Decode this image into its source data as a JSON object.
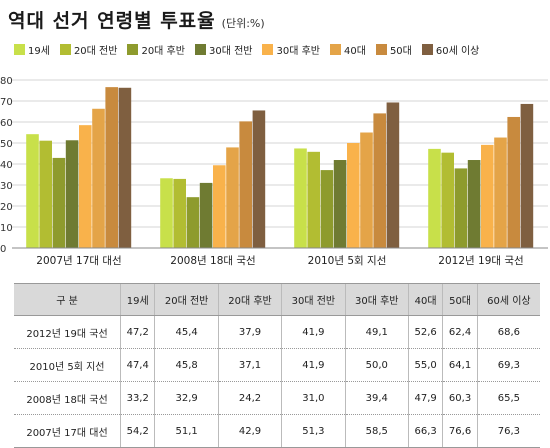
{
  "title": "역대 선거 연령별 투표율",
  "unit": "(단위:%)",
  "colors": [
    "#c8e04a",
    "#b2bd32",
    "#8e9b2d",
    "#6f7b32",
    "#f9b24b",
    "#e4a448",
    "#c88a3e",
    "#7f5f40"
  ],
  "chart_data": {
    "type": "bar",
    "title": "역대 선거 연령별 투표율",
    "categories": [
      "2007년 17대 대선",
      "2008년 18대 국선",
      "2010년 5회 지선",
      "2012년 19대 국선"
    ],
    "series": [
      {
        "name": "19세",
        "values": [
          54.2,
          33.2,
          47.4,
          47.2
        ]
      },
      {
        "name": "20대 전반",
        "values": [
          51.1,
          32.9,
          45.8,
          45.4
        ]
      },
      {
        "name": "20대 후반",
        "values": [
          42.9,
          24.2,
          37.1,
          37.9
        ]
      },
      {
        "name": "30대 전반",
        "values": [
          51.3,
          31.0,
          41.9,
          41.9
        ]
      },
      {
        "name": "30대 후반",
        "values": [
          58.5,
          39.4,
          50.0,
          49.1
        ]
      },
      {
        "name": "40대",
        "values": [
          66.3,
          47.9,
          55.0,
          52.6
        ]
      },
      {
        "name": "50대",
        "values": [
          76.6,
          60.3,
          64.1,
          62.4
        ]
      },
      {
        "name": "60세 이상",
        "values": [
          76.3,
          65.5,
          69.3,
          68.6
        ]
      }
    ],
    "ylim": [
      0,
      80
    ],
    "yticks": [
      0,
      10,
      20,
      30,
      40,
      50,
      60,
      70,
      80
    ],
    "xlabel": "",
    "ylabel": "",
    "grid": true,
    "legend": "top"
  },
  "table": {
    "header": [
      "구 분",
      "19세",
      "20대 전반",
      "20대 후반",
      "30대 전반",
      "30대 후반",
      "40대",
      "50대",
      "60세 이상"
    ],
    "rows": [
      [
        "2012년 19대 국선",
        "47,2",
        "45,4",
        "37,9",
        "41,9",
        "49,1",
        "52,6",
        "62,4",
        "68,6"
      ],
      [
        "2010년 5회 지선",
        "47,4",
        "45,8",
        "37,1",
        "41,9",
        "50,0",
        "55,0",
        "64,1",
        "69,3"
      ],
      [
        "2008년 18대 국선",
        "33,2",
        "32,9",
        "24,2",
        "31,0",
        "39,4",
        "47,9",
        "60,3",
        "65,5"
      ],
      [
        "2007년 17대 대선",
        "54,2",
        "51,1",
        "42,9",
        "51,3",
        "58,5",
        "66,3",
        "76,6",
        "76,3"
      ]
    ]
  }
}
